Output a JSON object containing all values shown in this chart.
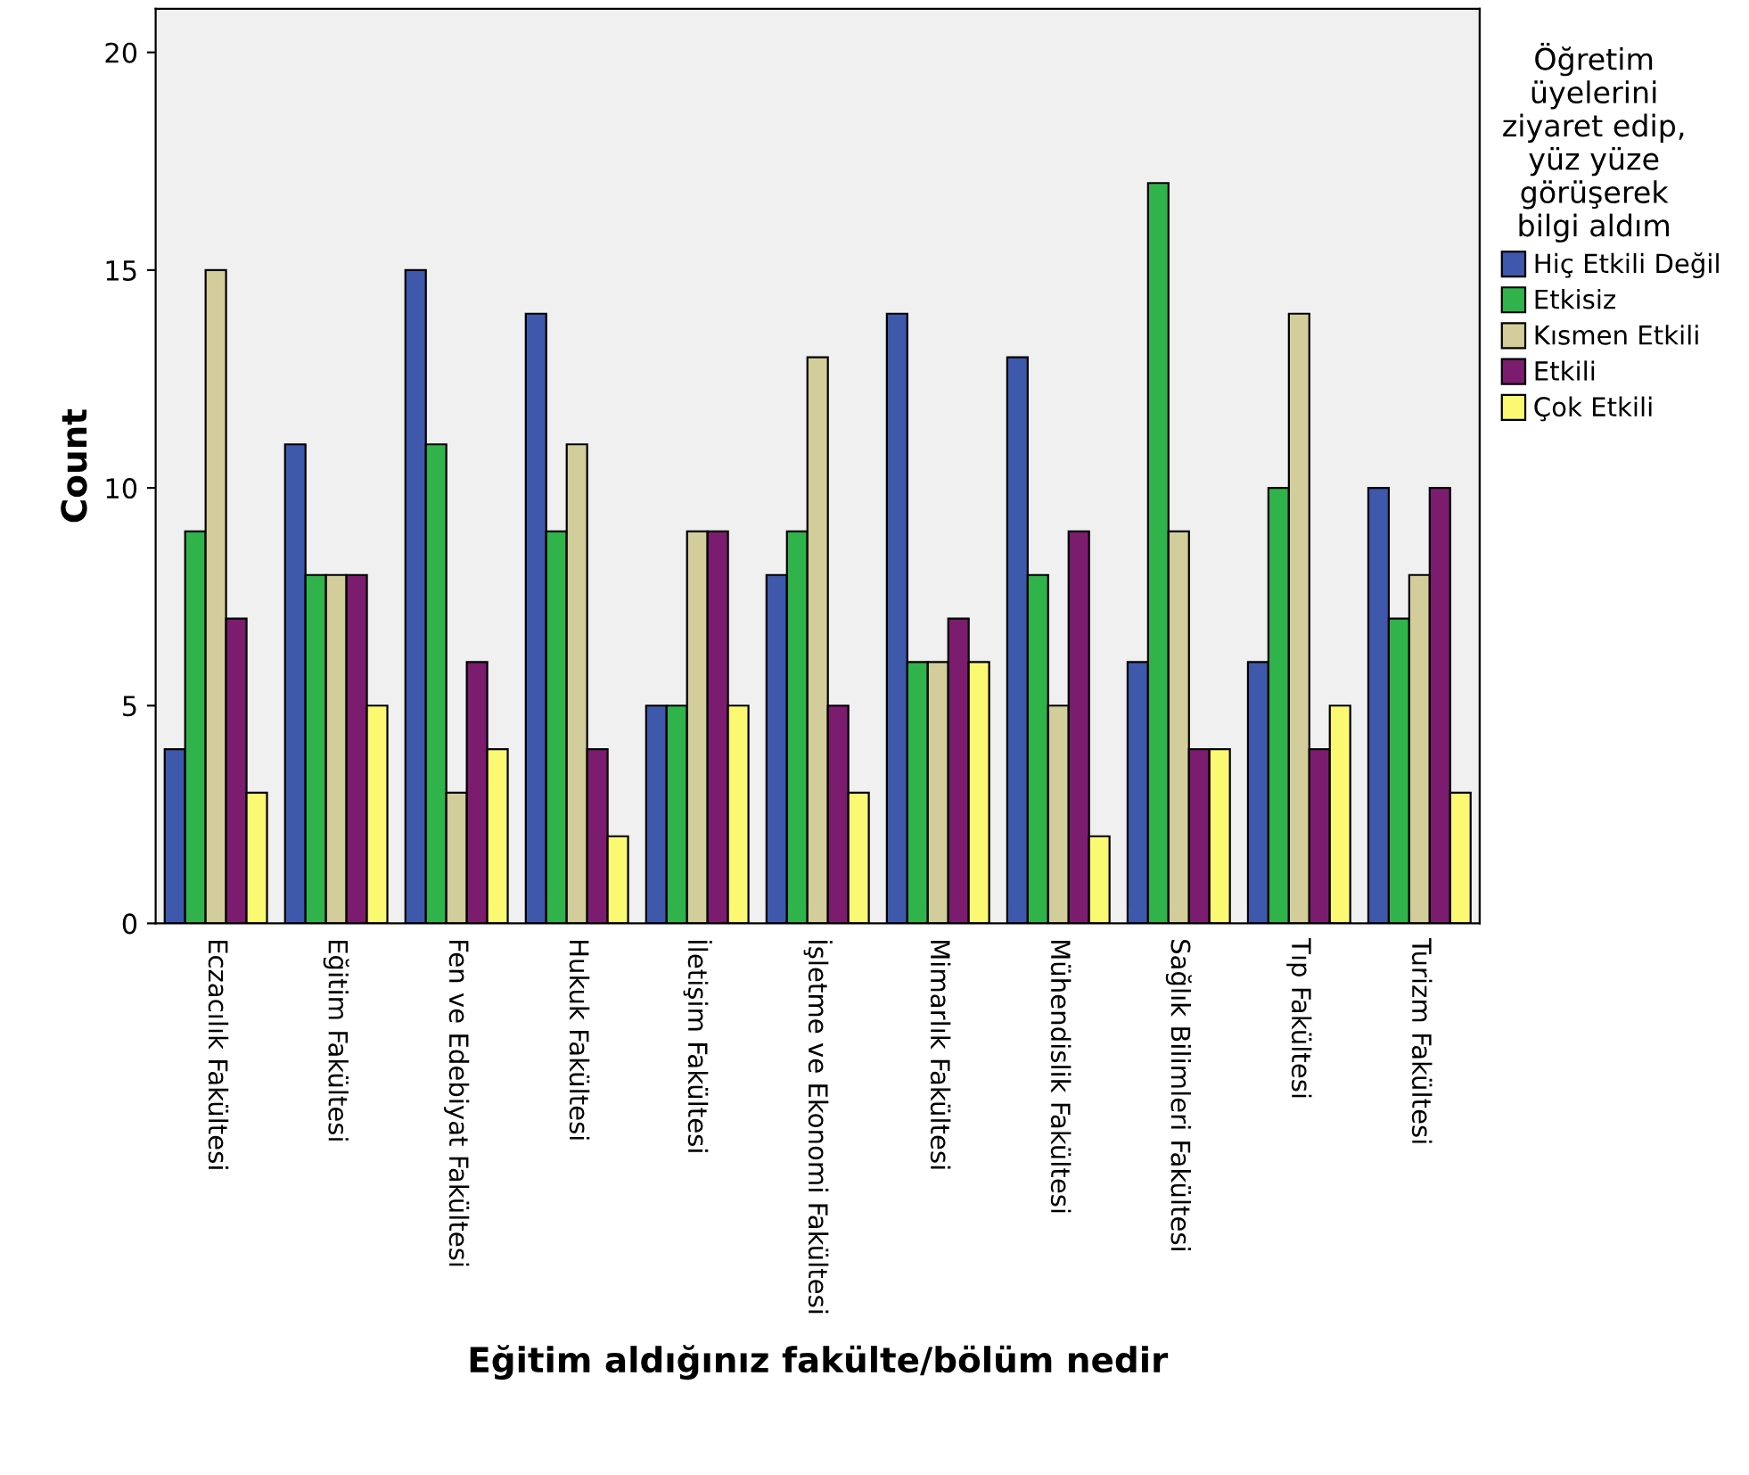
{
  "chart_data": {
    "type": "bar",
    "xlabel": "Eğitim aldığınız fakülte/bölüm nedir",
    "ylabel": "Count",
    "legend_title": "Öğretim\nüyelerini\nziyaret edip,\nyüz yüze\ngörüşerek\nbilgi aldım",
    "legend": "right",
    "grid": false,
    "categories": [
      "Eczacılık Fakültesi",
      "Eğitim Fakültesi",
      "Fen ve Edebiyat Fakültesi",
      "Hukuk Fakültesi",
      "İletişim Fakültesi",
      "İşletme ve Ekonomi Fakültesi",
      "Mimarlık Fakültesi",
      "Mühendislik Fakültesi",
      "Sağlık Bilimleri Fakültesi",
      "Tıp Fakültesi",
      "Turizm Fakültesi"
    ],
    "series": [
      {
        "name": "Hiç Etkili Değil",
        "color": "#3e58ab",
        "values": [
          4,
          11,
          15,
          14,
          5,
          8,
          14,
          13,
          6,
          6,
          10
        ]
      },
      {
        "name": "Etkisiz",
        "color": "#2fb34a",
        "values": [
          9,
          8,
          11,
          9,
          5,
          9,
          6,
          8,
          17,
          10,
          7
        ]
      },
      {
        "name": "Kısmen Etkili",
        "color": "#d3cd9b",
        "values": [
          15,
          8,
          3,
          11,
          9,
          13,
          6,
          5,
          9,
          14,
          8
        ]
      },
      {
        "name": "Etkili",
        "color": "#7b1c6f",
        "values": [
          7,
          8,
          6,
          4,
          9,
          5,
          7,
          9,
          4,
          4,
          10
        ]
      },
      {
        "name": "Çok Etkili",
        "color": "#fbf872",
        "values": [
          3,
          5,
          4,
          2,
          5,
          3,
          6,
          2,
          4,
          5,
          3
        ]
      }
    ],
    "ylim": [
      0,
      21
    ],
    "yticks": [
      0,
      5,
      10,
      15,
      20
    ]
  }
}
